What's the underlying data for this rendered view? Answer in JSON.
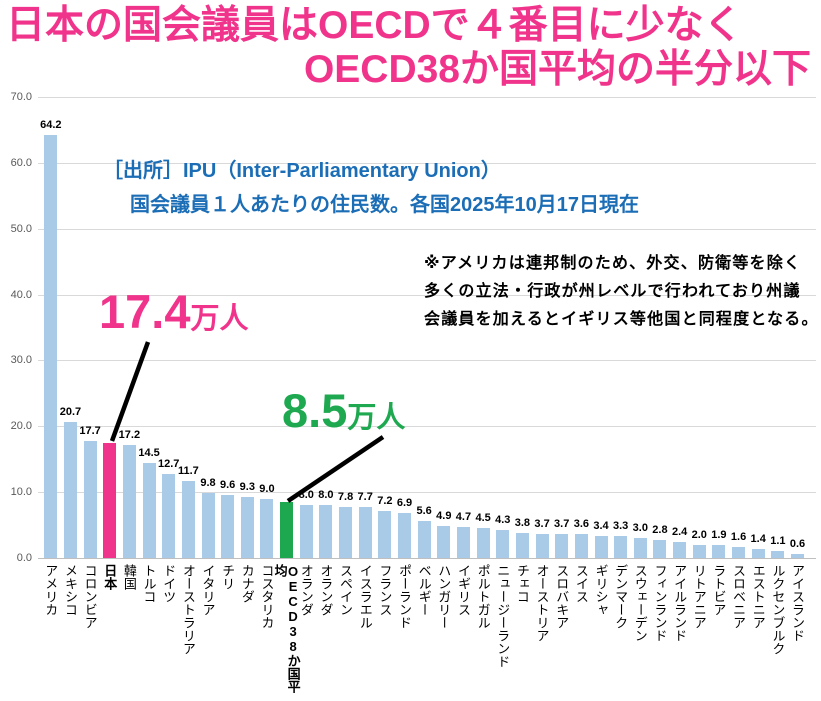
{
  "title": {
    "line1": "日本の国会議員はOECDで４番目に少なく",
    "line2": "OECD38か国平均の半分以下",
    "color": "#f0348c"
  },
  "source": {
    "line1": "［出所］IPU（Inter-Parliamentary Union）",
    "line2": "国会議員１人あたりの住民数。各国2025年10月17日現在",
    "color": "#1b6db6"
  },
  "note": {
    "lines": [
      "※アメリカは連邦制のため、外交、防衛等を除く",
      "多くの立法・行政が州レベルで行われており州議",
      "会議員を加えるとイギリス等他国と同程度となる。"
    ]
  },
  "callouts": {
    "japan": {
      "value": "17.4",
      "unit": "万人",
      "color": "#f0348c"
    },
    "oecd_avg": {
      "value": "8.5",
      "unit": "万人",
      "color": "#1ea850"
    }
  },
  "chart_data": {
    "type": "bar",
    "title": "国会議員1人あたりの住民数（万人）",
    "categories": [
      "アメリカ",
      "メキシコ",
      "コロンビア",
      "日本",
      "韓国",
      "トルコ",
      "ドイツ",
      "オーストラリア",
      "イタリア",
      "チリ",
      "カナダ",
      "コスタリカ",
      "OECD38か国平均",
      "オランダ",
      "オランダ",
      "スペイン",
      "イスラエル",
      "フランス",
      "ポーランド",
      "ベルギー",
      "ハンガリー",
      "イギリス",
      "ポルトガル",
      "ニュージーランド",
      "チェコ",
      "オーストリア",
      "スロバキア",
      "スイス",
      "ギリシャ",
      "デンマーク",
      "スウェーデン",
      "フィンランド",
      "アイルランド",
      "リトアニア",
      "ラトビア",
      "スロベニア",
      "エストニア",
      "ルクセンブルク",
      "アイスランド"
    ],
    "values": [
      64.2,
      20.7,
      17.7,
      17.4,
      17.2,
      14.5,
      12.7,
      11.7,
      9.8,
      9.6,
      9.3,
      9.0,
      8.5,
      8.0,
      8.0,
      7.8,
      7.7,
      7.2,
      6.9,
      5.6,
      4.9,
      4.7,
      4.5,
      4.3,
      3.8,
      3.7,
      3.7,
      3.6,
      3.4,
      3.3,
      3.0,
      2.8,
      2.4,
      2.0,
      1.9,
      1.6,
      1.4,
      1.1,
      0.6
    ],
    "yticks": [
      "70.0",
      "60.0",
      "50.0",
      "40.0",
      "30.0",
      "20.0",
      "10.0",
      "0.0"
    ],
    "ylim": [
      0,
      70
    ],
    "grid": true,
    "legend": false,
    "xlabel": "",
    "ylabel": "",
    "japan_index": 3,
    "oecd_avg_index": 12,
    "hide_value_label_indices": [
      3,
      12
    ],
    "bold_category_indices": [
      3,
      12
    ],
    "colors": {
      "default_bar": "#a9cbe8",
      "japan_bar": "#f0348c",
      "oecd_avg_bar": "#1da850",
      "gridline": "#d9d9d9",
      "tick_text": "#595959",
      "value_label": "#000000"
    }
  }
}
